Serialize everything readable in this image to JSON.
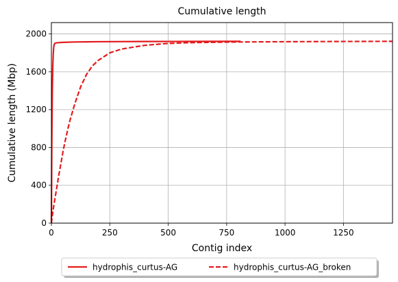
{
  "chart_data": {
    "type": "line",
    "title": "Cumulative length",
    "xlabel": "Contig index",
    "ylabel": "Cumulative length (Mbp)",
    "xlim": [
      0,
      1460
    ],
    "ylim": [
      0,
      2120
    ],
    "xticks": [
      0,
      250,
      500,
      750,
      1000,
      1250
    ],
    "yticks": [
      0,
      400,
      800,
      1200,
      1600,
      2000
    ],
    "grid": true,
    "legend_position": "bottom-center, outside plot, two columns",
    "colors": {
      "line": "#e31a1c"
    },
    "series": [
      {
        "name": "hydrophis_curtus-AG",
        "style": "solid",
        "x": [
          0,
          2,
          4,
          6,
          8,
          10,
          12,
          15,
          20,
          30,
          50,
          100,
          200,
          400,
          600,
          810
        ],
        "y": [
          0,
          900,
          1400,
          1660,
          1790,
          1860,
          1890,
          1900,
          1905,
          1908,
          1911,
          1915,
          1918,
          1920,
          1921,
          1922
        ]
      },
      {
        "name": "hydrophis_curtus-AG_broken",
        "style": "dashed",
        "x": [
          0,
          5,
          10,
          20,
          30,
          40,
          50,
          60,
          70,
          80,
          100,
          125,
          150,
          175,
          200,
          250,
          300,
          400,
          500,
          600,
          700,
          800,
          1000,
          1200,
          1460
        ],
        "y": [
          0,
          100,
          180,
          330,
          480,
          620,
          760,
          880,
          990,
          1090,
          1260,
          1440,
          1570,
          1660,
          1720,
          1800,
          1840,
          1880,
          1900,
          1908,
          1912,
          1915,
          1918,
          1920,
          1922
        ]
      }
    ]
  }
}
